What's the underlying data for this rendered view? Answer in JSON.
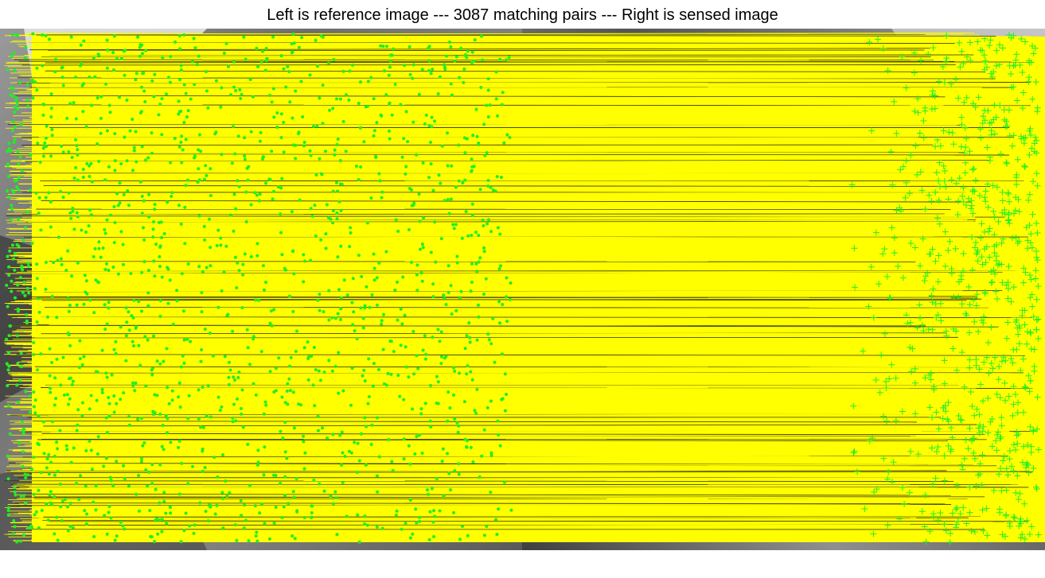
{
  "figure": {
    "title": "Left is reference image --- 3087 matching pairs --- Right is sensed image"
  },
  "matches": {
    "pair_count": 3087,
    "line_color": "#ffff00",
    "reference_marker": "green-dot",
    "sensed_marker": "green-plus",
    "marker_color": "#22ee22"
  },
  "images": {
    "reference_description": "grayscale aerial image",
    "sensed_description": "grayscale aerial image"
  }
}
